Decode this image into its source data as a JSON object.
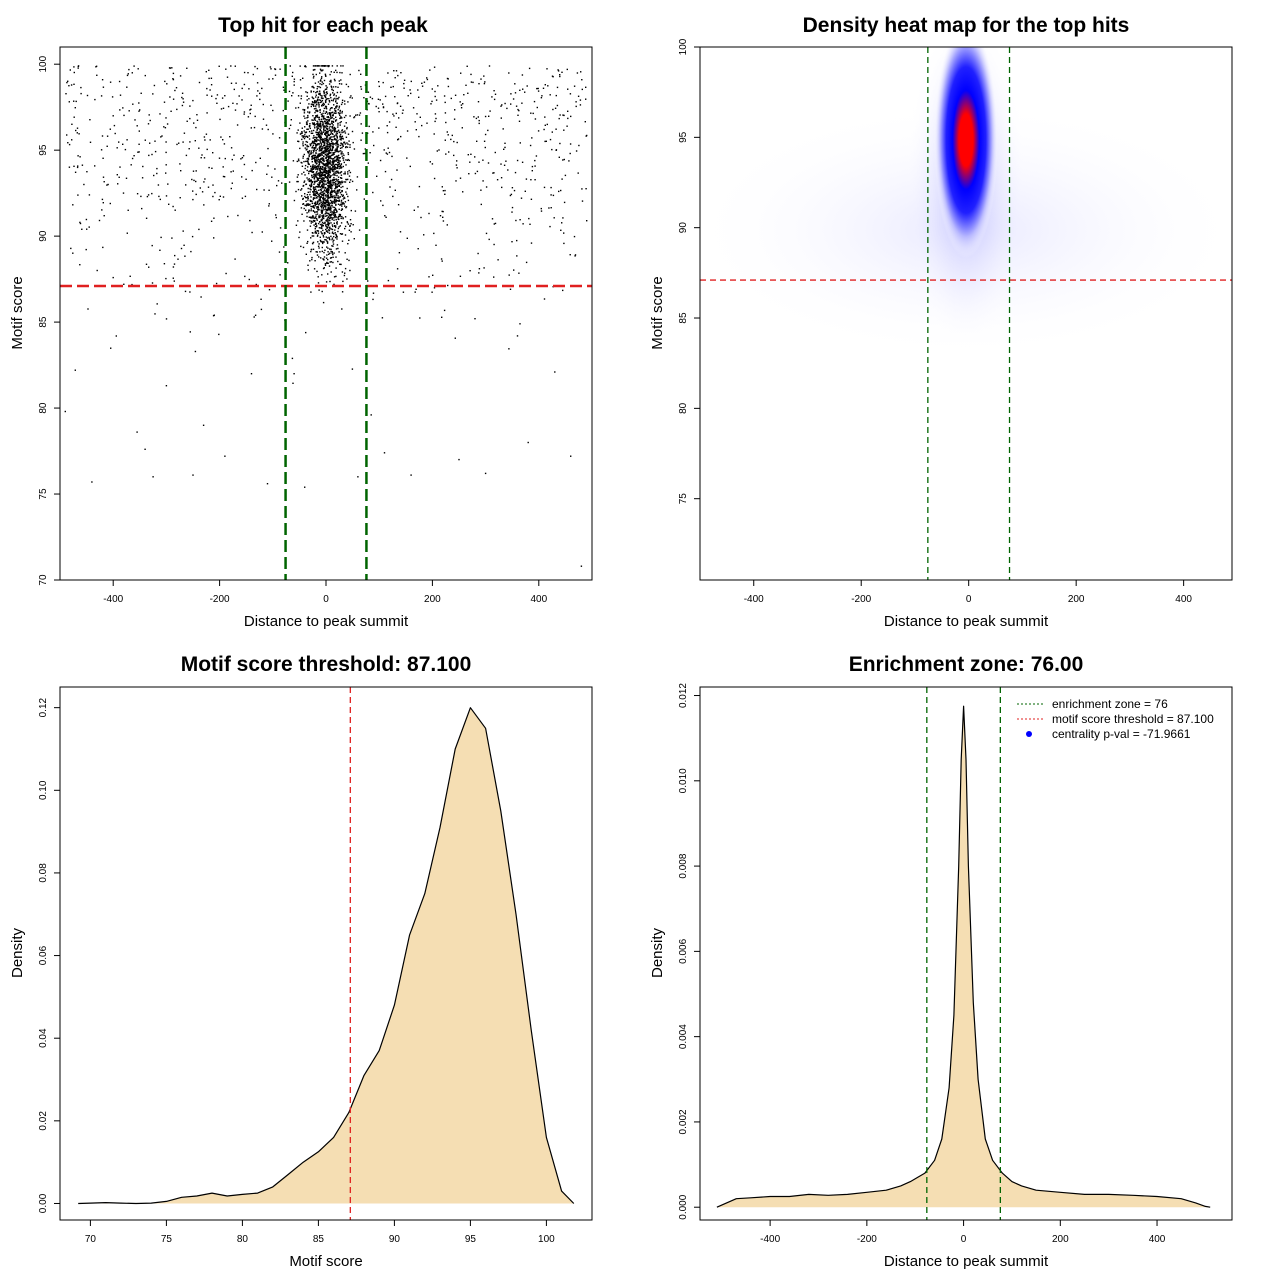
{
  "chart_data": [
    {
      "type": "scatter",
      "title": "Top hit for each peak",
      "xlabel": "Distance to peak summit",
      "ylabel": "Motif score",
      "xlim": [
        -500,
        500
      ],
      "ylim": [
        70,
        101
      ],
      "xticks": [
        -400,
        -200,
        0,
        200,
        400
      ],
      "yticks": [
        70,
        75,
        80,
        85,
        90,
        95,
        100
      ],
      "point_color": "#000000",
      "points_sample": [
        [
          -490,
          79.8
        ],
        [
          -478,
          95.6
        ],
        [
          -465,
          99.9
        ],
        [
          -455,
          93.0
        ],
        [
          -440,
          75.7
        ],
        [
          -430,
          88.0
        ],
        [
          -420,
          99.1
        ],
        [
          -400,
          97.0
        ],
        [
          -380,
          87.2
        ],
        [
          -355,
          78.6
        ],
        [
          -340,
          77.6
        ],
        [
          -325,
          76.0
        ],
        [
          -300,
          81.3
        ],
        [
          -270,
          97.6
        ],
        [
          -250,
          76.1
        ],
        [
          -230,
          79.0
        ],
        [
          -210,
          85.4
        ],
        [
          -190,
          77.2
        ],
        [
          -160,
          94.5
        ],
        [
          -140,
          82.0
        ],
        [
          -110,
          75.6
        ],
        [
          -95,
          99.7
        ],
        [
          -60,
          82.0
        ],
        [
          -40,
          75.4
        ],
        [
          -20,
          99.9
        ],
        [
          0,
          95.0
        ],
        [
          10,
          93.0
        ],
        [
          20,
          90.0
        ],
        [
          30,
          99.5
        ],
        [
          45,
          88.0
        ],
        [
          60,
          76.0
        ],
        [
          85,
          79.6
        ],
        [
          110,
          77.4
        ],
        [
          160,
          76.1
        ],
        [
          200,
          94.2
        ],
        [
          230,
          98.7
        ],
        [
          250,
          77.0
        ],
        [
          280,
          85.2
        ],
        [
          300,
          76.2
        ],
        [
          330,
          93.4
        ],
        [
          360,
          84.2
        ],
        [
          380,
          78.0
        ],
        [
          410,
          96.2
        ],
        [
          430,
          82.1
        ],
        [
          460,
          77.2
        ],
        [
          480,
          70.8
        ],
        [
          490,
          90.9
        ]
      ],
      "threshold_y": 87.1,
      "zone_x": [
        -76,
        76
      ],
      "threshold_color": "#e02020",
      "zone_color": "#006400"
    },
    {
      "type": "heatmap",
      "title": "Density heat map for the top hits",
      "xlabel": "Distance to peak summit",
      "ylabel": "Motif score",
      "xlim": [
        -500,
        490
      ],
      "ylim": [
        70.5,
        100
      ],
      "xticks": [
        -400,
        -200,
        0,
        200,
        400
      ],
      "yticks": [
        75,
        80,
        85,
        90,
        95,
        100
      ],
      "peak": {
        "x": 0,
        "y": 95
      },
      "colors": [
        "#ffffff",
        "#0000ff",
        "#ff0000"
      ],
      "threshold_y": 87.1,
      "zone_x": [
        -76,
        76
      ],
      "threshold_color": "#e02020",
      "zone_color": "#006400"
    },
    {
      "type": "area",
      "title": "Motif score threshold: 87.100",
      "xlabel": "Motif score",
      "ylabel": "Density",
      "xlim": [
        68,
        103
      ],
      "ylim": [
        -0.004,
        0.125
      ],
      "xticks": [
        70,
        75,
        80,
        85,
        90,
        95,
        100
      ],
      "yticks": [
        0.0,
        0.02,
        0.04,
        0.06,
        0.08,
        0.1,
        0.12
      ],
      "ytick_labels": [
        "0.00",
        "0.02",
        "0.04",
        "0.06",
        "0.08",
        "0.10",
        "0.12"
      ],
      "fill_color": "#f5deb3",
      "x": [
        69.2,
        70,
        71,
        72,
        73,
        74,
        75,
        76,
        77,
        78,
        79,
        80,
        81,
        82,
        83,
        84,
        85,
        86,
        87,
        88,
        89,
        90,
        91,
        92,
        93,
        94,
        95,
        96,
        97,
        98,
        99,
        100,
        101,
        101.8
      ],
      "y": [
        0.0,
        0.0001,
        0.0002,
        0.0001,
        0.0,
        0.0001,
        0.0005,
        0.0015,
        0.0018,
        0.0025,
        0.0018,
        0.0022,
        0.0025,
        0.004,
        0.007,
        0.01,
        0.0125,
        0.016,
        0.022,
        0.031,
        0.037,
        0.048,
        0.065,
        0.075,
        0.091,
        0.11,
        0.12,
        0.115,
        0.095,
        0.07,
        0.042,
        0.016,
        0.003,
        0.0
      ],
      "threshold_x": 87.1,
      "threshold_color": "#e02020"
    },
    {
      "type": "area",
      "title": "Enrichment zone: 76.00",
      "xlabel": "Distance to peak summit",
      "ylabel": "Density",
      "xlim": [
        -545,
        555
      ],
      "ylim": [
        -0.0003,
        0.0122
      ],
      "xticks": [
        -400,
        -200,
        0,
        200,
        400
      ],
      "yticks": [
        0.0,
        0.002,
        0.004,
        0.006,
        0.008,
        0.01,
        0.012
      ],
      "ytick_labels": [
        "0.000",
        "0.002",
        "0.004",
        "0.006",
        "0.008",
        "0.010",
        "0.012"
      ],
      "fill_color": "#f5deb3",
      "x": [
        -510,
        -490,
        -470,
        -440,
        -400,
        -360,
        -320,
        -280,
        -240,
        -200,
        -160,
        -130,
        -110,
        -95,
        -80,
        -60,
        -45,
        -30,
        -20,
        -10,
        -5,
        0,
        5,
        10,
        20,
        30,
        45,
        60,
        80,
        100,
        120,
        150,
        200,
        250,
        300,
        350,
        400,
        450,
        480,
        500,
        510
      ],
      "y": [
        0.0,
        0.0001,
        0.0002,
        0.00022,
        0.00025,
        0.00025,
        0.0003,
        0.00028,
        0.0003,
        0.00035,
        0.0004,
        0.0005,
        0.0006,
        0.0007,
        0.0008,
        0.0011,
        0.0016,
        0.0028,
        0.0045,
        0.008,
        0.0105,
        0.01175,
        0.0105,
        0.008,
        0.0048,
        0.003,
        0.0016,
        0.0011,
        0.0008,
        0.0006,
        0.0005,
        0.0004,
        0.00035,
        0.0003,
        0.0003,
        0.00028,
        0.00025,
        0.0002,
        0.0001,
        2e-05,
        0.0
      ],
      "zone_x": [
        -76,
        76
      ],
      "zone_color": "#006400",
      "legend": {
        "position": "top-right",
        "items": [
          {
            "label": "enrichment zone = 76",
            "style": "dotted",
            "color": "#006400"
          },
          {
            "label": "motif score threshold = 87.100",
            "style": "dotted",
            "color": "#e02020"
          },
          {
            "label": "centrality p-val = -71.9661",
            "style": "point",
            "color": "#0000ff"
          }
        ]
      }
    }
  ]
}
